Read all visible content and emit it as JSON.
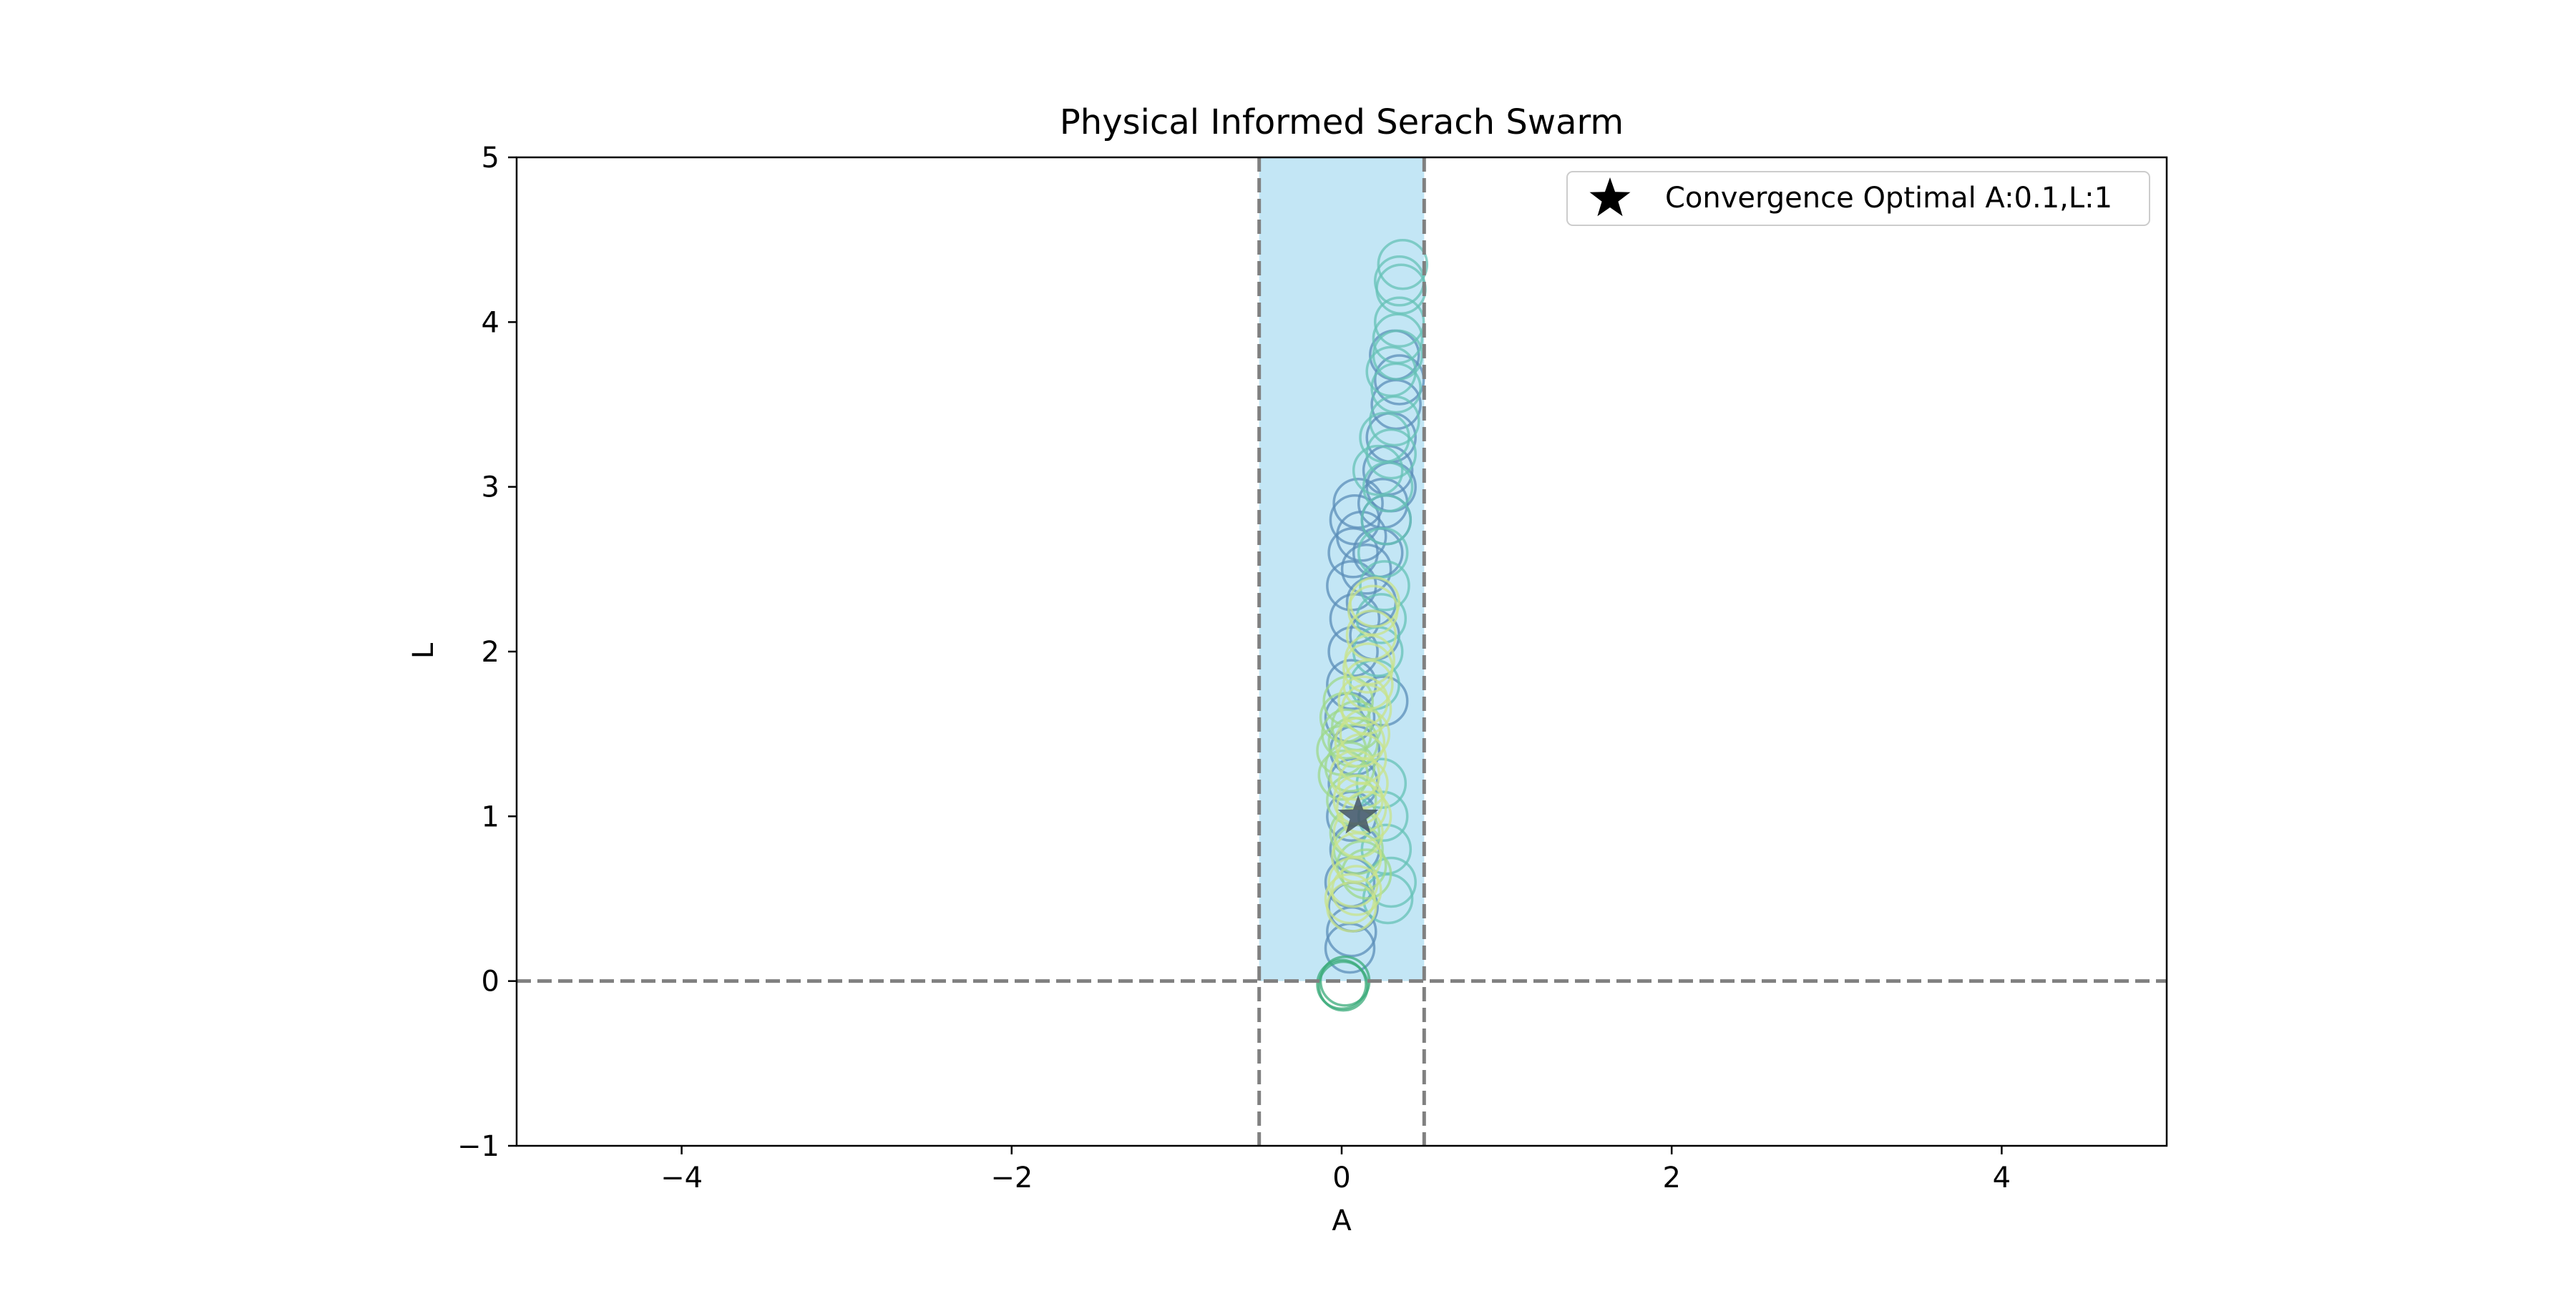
{
  "chart_data": {
    "type": "scatter",
    "title": "Physical Informed Serach Swarm",
    "xlabel": "A",
    "ylabel": "L",
    "xlim": [
      -5,
      5
    ],
    "ylim": [
      -1,
      5
    ],
    "xticks": [
      -4,
      -2,
      0,
      2,
      4
    ],
    "xtick_labels": [
      "−4",
      "−2",
      "0",
      "2",
      "4"
    ],
    "yticks": [
      -1,
      0,
      1,
      2,
      3,
      4,
      5
    ],
    "ytick_labels": [
      "−1",
      "0",
      "1",
      "2",
      "3",
      "4",
      "5"
    ],
    "grid": false,
    "shaded_region": {
      "x": [
        -0.5,
        0.5
      ],
      "y": [
        0,
        5
      ],
      "color": "#87ceeb"
    },
    "reference_lines": [
      {
        "orientation": "vertical",
        "value": -0.5,
        "style": "dashed",
        "color": "#808080"
      },
      {
        "orientation": "vertical",
        "value": 0.5,
        "style": "dashed",
        "color": "#808080"
      },
      {
        "orientation": "horizontal",
        "value": 0,
        "style": "dashed",
        "color": "#808080"
      }
    ],
    "optimum": {
      "label": "Convergence Optimal A:0.1,L:1",
      "x": 0.1,
      "y": 1,
      "marker": "star",
      "color": "#000000"
    },
    "legend": {
      "position": "top-right",
      "entries": [
        "Convergence Optimal A:0.1,L:1"
      ]
    },
    "series": [
      {
        "color": "#5b8db8",
        "marker": "hollow-circle",
        "points": [
          [
            0.05,
            0.2
          ],
          [
            0.06,
            0.3
          ],
          [
            0.07,
            0.45
          ],
          [
            0.05,
            0.6
          ],
          [
            0.08,
            0.8
          ],
          [
            0.06,
            1.0
          ],
          [
            0.07,
            1.2
          ],
          [
            0.08,
            1.4
          ],
          [
            0.05,
            1.6
          ],
          [
            0.06,
            1.8
          ],
          [
            0.07,
            2.0
          ],
          [
            0.08,
            2.2
          ],
          [
            0.06,
            2.4
          ],
          [
            0.07,
            2.6
          ],
          [
            0.08,
            2.8
          ],
          [
            0.1,
            2.9
          ],
          [
            0.12,
            2.7
          ],
          [
            0.15,
            2.5
          ],
          [
            0.18,
            2.3
          ],
          [
            0.2,
            2.1
          ],
          [
            0.22,
            2.6
          ],
          [
            0.25,
            2.9
          ],
          [
            0.28,
            3.1
          ],
          [
            0.3,
            3.3
          ],
          [
            0.33,
            3.5
          ],
          [
            0.35,
            3.65
          ],
          [
            0.32,
            3.8
          ],
          [
            0.3,
            3.0
          ],
          [
            0.27,
            2.8
          ],
          [
            0.25,
            1.7
          ]
        ]
      },
      {
        "color": "#66c2b5",
        "marker": "hollow-circle",
        "points": [
          [
            0.2,
            1.8
          ],
          [
            0.22,
            2.0
          ],
          [
            0.24,
            2.2
          ],
          [
            0.26,
            2.4
          ],
          [
            0.25,
            2.6
          ],
          [
            0.27,
            2.8
          ],
          [
            0.28,
            3.0
          ],
          [
            0.3,
            3.2
          ],
          [
            0.32,
            3.4
          ],
          [
            0.33,
            3.6
          ],
          [
            0.34,
            3.8
          ],
          [
            0.35,
            4.0
          ],
          [
            0.36,
            4.2
          ],
          [
            0.37,
            4.35
          ],
          [
            0.35,
            4.25
          ],
          [
            0.34,
            3.9
          ],
          [
            0.3,
            3.7
          ],
          [
            0.26,
            3.3
          ],
          [
            0.22,
            3.1
          ],
          [
            0.24,
            1.2
          ],
          [
            0.25,
            1.0
          ],
          [
            0.27,
            0.8
          ],
          [
            0.3,
            0.6
          ],
          [
            0.28,
            0.5
          ]
        ]
      },
      {
        "color": "#3aab7a",
        "marker": "hollow-circle",
        "points": [
          [
            0.01,
            -0.03
          ],
          [
            0.02,
            0.0
          ],
          [
            0.0,
            -0.02
          ]
        ]
      },
      {
        "color": "#9ed88a",
        "marker": "hollow-circle",
        "points": [
          [
            0.0,
            1.4
          ],
          [
            0.02,
            1.6
          ],
          [
            0.04,
            1.7
          ],
          [
            0.05,
            1.3
          ],
          [
            0.06,
            1.1
          ],
          [
            0.08,
            0.9
          ],
          [
            0.1,
            0.8
          ],
          [
            0.12,
            0.7
          ],
          [
            0.15,
            0.65
          ],
          [
            0.03,
            1.5
          ],
          [
            0.07,
            1.45
          ],
          [
            0.09,
            1.55
          ],
          [
            0.01,
            1.25
          ]
        ]
      },
      {
        "color": "#c8e38a",
        "marker": "hollow-circle",
        "points": [
          [
            0.05,
            0.5
          ],
          [
            0.07,
            0.6
          ],
          [
            0.09,
            0.75
          ],
          [
            0.1,
            0.9
          ],
          [
            0.12,
            1.05
          ],
          [
            0.13,
            1.2
          ],
          [
            0.12,
            1.35
          ],
          [
            0.14,
            1.5
          ],
          [
            0.15,
            1.65
          ],
          [
            0.16,
            1.8
          ],
          [
            0.17,
            1.95
          ],
          [
            0.18,
            2.1
          ],
          [
            0.19,
            2.25
          ],
          [
            0.2,
            2.3
          ],
          [
            0.16,
            1.9
          ],
          [
            0.13,
            1.7
          ],
          [
            0.11,
            1.45
          ],
          [
            0.08,
            1.25
          ],
          [
            0.1,
            1.1
          ],
          [
            0.15,
            1.0
          ],
          [
            0.06,
            0.45
          ],
          [
            0.09,
            0.55
          ]
        ]
      }
    ]
  }
}
